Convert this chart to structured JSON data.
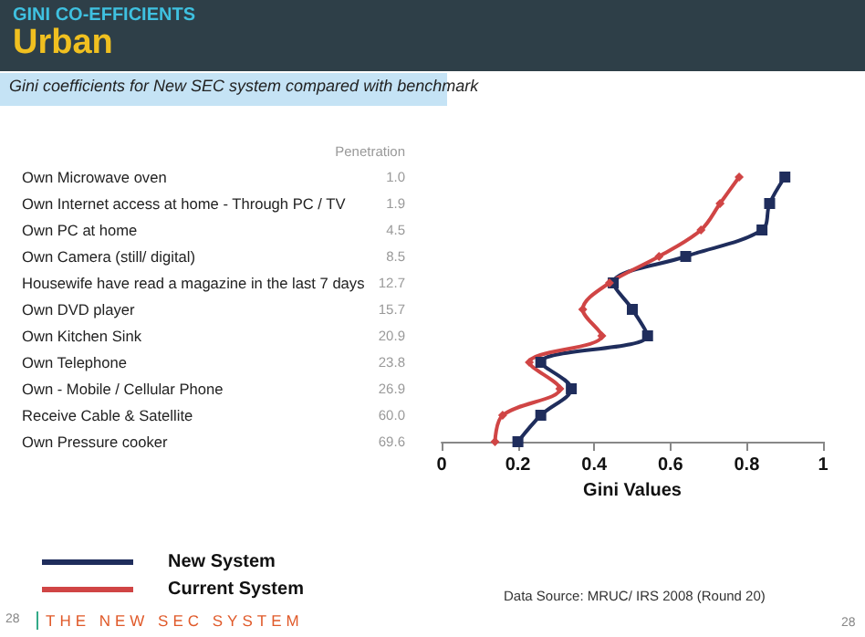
{
  "chart_data": {
    "type": "line",
    "orientation": "horizontal",
    "subtitle": "GINI CO-EFFICIENTS",
    "title": "Urban",
    "xlabel": "Gini Values",
    "y2label": "Penetration",
    "categories": [
      "Own Microwave oven",
      "Own Internet access at home - Through PC / TV",
      "Own PC at home",
      "Own Camera (still/ digital)",
      "Housewife have read a magazine in the last 7 days",
      "Own DVD player",
      "Own Kitchen Sink",
      "Own Telephone",
      "Own - Mobile / Cellular Phone",
      "Receive Cable & Satellite",
      "Own Pressure cooker"
    ],
    "y2_categories": [
      "1.0",
      "1.9",
      "4.5",
      "8.5",
      "12.7",
      "15.7",
      "20.9",
      "23.8",
      "26.9",
      "60.0",
      "69.6"
    ],
    "series": [
      {
        "name": "New System",
        "color": "#1f2d5c",
        "marker": "square",
        "values": [
          0.9,
          0.86,
          0.84,
          0.64,
          0.45,
          0.5,
          0.54,
          0.26,
          0.34,
          0.26,
          0.2
        ]
      },
      {
        "name": "Current System",
        "color": "#d04545",
        "marker": "diamond",
        "values": [
          0.78,
          0.73,
          0.68,
          0.57,
          0.44,
          0.37,
          0.42,
          0.23,
          0.31,
          0.16,
          0.14
        ]
      }
    ],
    "xlim": [
      0,
      1
    ],
    "xticks": [
      0,
      0.2,
      0.4,
      0.6,
      0.8,
      1
    ],
    "grid": false,
    "legend": "bottom left",
    "annotations": [
      "Gini coefficients for New SEC system compared with benchmark",
      "Data Source: MRUC/ IRS 2008 (Round 20)",
      "THE NEW SEC SYSTEM",
      "28",
      "28"
    ]
  }
}
